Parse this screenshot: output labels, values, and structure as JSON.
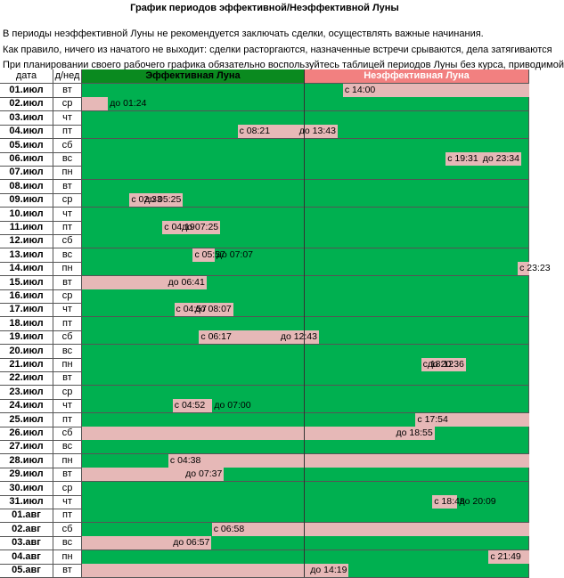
{
  "title": "График  периодов эффективной/Неэффективной Луны",
  "notes": [
    "В периоды неэффективной Луны не рекомендуется заключать сделки, осуществлять важные начинания.",
    "Как правило, ничего из начатого не выходит: сделки расторгаются, назначенные встречи срываются, дела затягиваются",
    "При планировании своего рабочего графика обязательно воспользуйтесь таблицей периодов Луны без курса, приводимой"
  ],
  "table": {
    "headers": [
      "дата",
      "д/нед",
      "Эффективная Луна",
      "Неэффективная Луна"
    ],
    "rows": [
      {
        "date": "01.июл",
        "day": "вт",
        "from": "с 14:00",
        "to": null
      },
      {
        "date": "02.июл",
        "day": "ср",
        "from": null,
        "to": "до 01:24"
      },
      {
        "date": "03.июл",
        "day": "чт",
        "from": null,
        "to": null
      },
      {
        "date": "04.июл",
        "day": "пт",
        "from": "с 08:21",
        "to": "до 13:43"
      },
      {
        "date": "05.июл",
        "day": "сб",
        "from": null,
        "to": null
      },
      {
        "date": "06.июл",
        "day": "вс",
        "from": "с 19:31",
        "to": "до 23:34"
      },
      {
        "date": "07.июл",
        "day": "пн",
        "from": null,
        "to": null
      },
      {
        "date": "08.июл",
        "day": "вт",
        "from": null,
        "to": null
      },
      {
        "date": "09.июл",
        "day": "ср",
        "from": "с 02:33",
        "to": "до 05:25"
      },
      {
        "date": "10.июл",
        "day": "чт",
        "from": null,
        "to": null
      },
      {
        "date": "11.июл",
        "day": "пт",
        "from": "с 04:19",
        "to": "до 07:25"
      },
      {
        "date": "12.июл",
        "day": "сб",
        "from": null,
        "to": null
      },
      {
        "date": "13.июл",
        "day": "вс",
        "from": "с 05:57",
        "to": "до 07:07"
      },
      {
        "date": "14.июл",
        "day": "пн",
        "from": "с 23:23",
        "to": null
      },
      {
        "date": "15.июл",
        "day": "вт",
        "from": null,
        "to": "до 06:41"
      },
      {
        "date": "16.июл",
        "day": "ср",
        "from": null,
        "to": null
      },
      {
        "date": "17.июл",
        "day": "чт",
        "from": "с 04:57",
        "to": "до 08:07"
      },
      {
        "date": "18.июл",
        "day": "пт",
        "from": null,
        "to": null
      },
      {
        "date": "19.июл",
        "day": "сб",
        "from": "с 06:17",
        "to": "до 12:43"
      },
      {
        "date": "20.июл",
        "day": "вс",
        "from": null,
        "to": null
      },
      {
        "date": "21.июл",
        "day": "пн",
        "from": "с 18:12",
        "to": "до 20:36"
      },
      {
        "date": "22.июл",
        "day": "вт",
        "from": null,
        "to": null
      },
      {
        "date": "23.июл",
        "day": "ср",
        "from": null,
        "to": null
      },
      {
        "date": "24.июл",
        "day": "чт",
        "from": "с 04:52",
        "to": "до 07:00"
      },
      {
        "date": "25.июл",
        "day": "пт",
        "from": "с 17:54",
        "to": null
      },
      {
        "date": "26.июл",
        "day": "сб",
        "from": null,
        "to": "до  18:55"
      },
      {
        "date": "27.июл",
        "day": "вс",
        "from": null,
        "to": null
      },
      {
        "date": "28.июл",
        "day": "пн",
        "from": "с 04:38",
        "to": null
      },
      {
        "date": "29.июл",
        "day": "вт",
        "from": null,
        "to": "до 07:37"
      },
      {
        "date": "30.июл",
        "day": "ср",
        "from": null,
        "to": null
      },
      {
        "date": "31.июл",
        "day": "чт",
        "from": "с 18:48",
        "to": "до 20:09"
      },
      {
        "date": "01.авг",
        "day": "пт",
        "from": null,
        "to": null
      },
      {
        "date": "02.авг",
        "day": "сб",
        "from": "с 06:58",
        "to": null
      },
      {
        "date": "03.авг",
        "day": "вс",
        "from": null,
        "to": "до 06:57"
      },
      {
        "date": "04.авг",
        "day": "пн",
        "from": "с 21:49",
        "to": null
      },
      {
        "date": "05.авг",
        "day": "вт",
        "from": null,
        "to": "до 14:19"
      }
    ]
  }
}
